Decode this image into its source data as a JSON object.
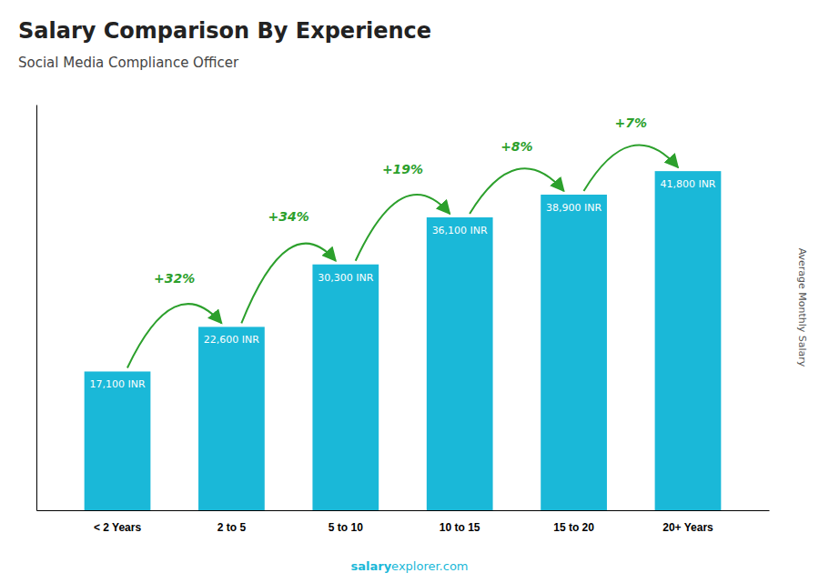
{
  "chart_data": {
    "type": "bar",
    "title": "Salary Comparison By Experience",
    "subtitle": "Social Media Compliance Officer",
    "ylabel": "Average Monthly Salary",
    "categories": [
      "< 2 Years",
      "2 to 5",
      "5 to 10",
      "10 to 15",
      "15 to 20",
      "20+ Years"
    ],
    "values": [
      17100,
      22600,
      30300,
      36100,
      38900,
      41800
    ],
    "value_labels": [
      "17,100 INR",
      "22,600 INR",
      "30,300 INR",
      "36,100 INR",
      "38,900 INR",
      "41,800 INR"
    ],
    "data_labels": true,
    "annotations": [
      "+32%",
      "+34%",
      "+19%",
      "+8%",
      "+7%"
    ],
    "watermark": [
      "salary",
      "explorer.com"
    ],
    "color": "#1ab8d8",
    "ylim": [
      0,
      50000
    ],
    "tick_labels": "x",
    "grid": false
  }
}
